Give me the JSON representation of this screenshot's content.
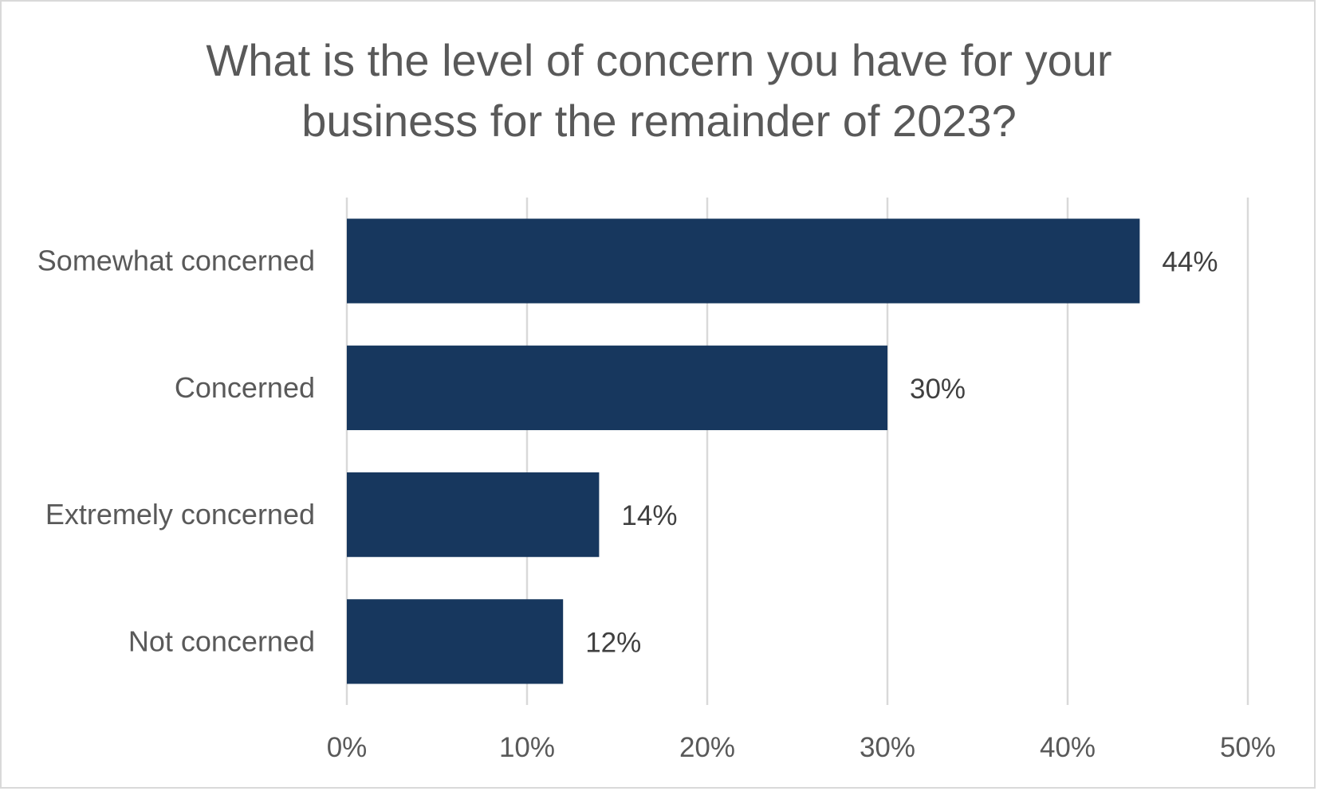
{
  "chart_data": {
    "type": "bar",
    "orientation": "horizontal",
    "title_lines": [
      "What is the level of concern you have for your",
      "business for the remainder of 2023?"
    ],
    "categories": [
      "Somewhat concerned",
      "Concerned",
      "Extremely concerned",
      "Not concerned"
    ],
    "values": [
      44,
      30,
      14,
      12
    ],
    "data_labels": [
      "44%",
      "30%",
      "14%",
      "12%"
    ],
    "xlim": [
      0,
      50
    ],
    "xticks": [
      0,
      10,
      20,
      30,
      40,
      50
    ],
    "xtick_labels": [
      "0%",
      "10%",
      "20%",
      "30%",
      "40%",
      "50%"
    ],
    "grid": true,
    "legend": "none",
    "bar_color": "#17375e",
    "grid_color": "#d9d9d9"
  }
}
